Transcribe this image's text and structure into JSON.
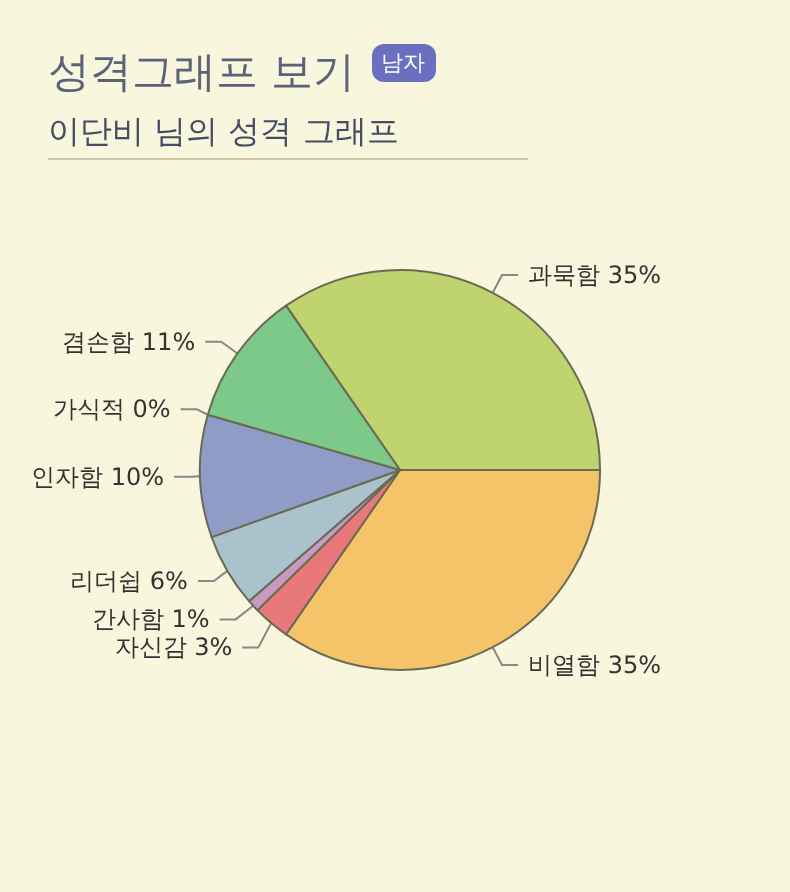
{
  "chart_data": {
    "type": "pie",
    "title": "성격그래프 보기",
    "subtitle": "이단비 님의 성격 그래프",
    "annotations": [
      "남자"
    ],
    "categories": [
      "과묵함",
      "비열함",
      "자신감",
      "간사함",
      "리더쉽",
      "인자함",
      "가식적",
      "겸손함"
    ],
    "values": [
      35,
      35,
      3,
      1,
      6,
      10,
      0,
      11
    ],
    "colors": [
      "#bfd36e",
      "#f6c468",
      "#e8787a",
      "#c89ac0",
      "#a9c2cc",
      "#8e9cc6",
      "#d8d8a0",
      "#7cc98a"
    ],
    "value_labels": [
      "35%",
      "35%",
      "3%",
      "1%",
      "6%",
      "10%",
      "0%",
      "11%"
    ]
  }
}
